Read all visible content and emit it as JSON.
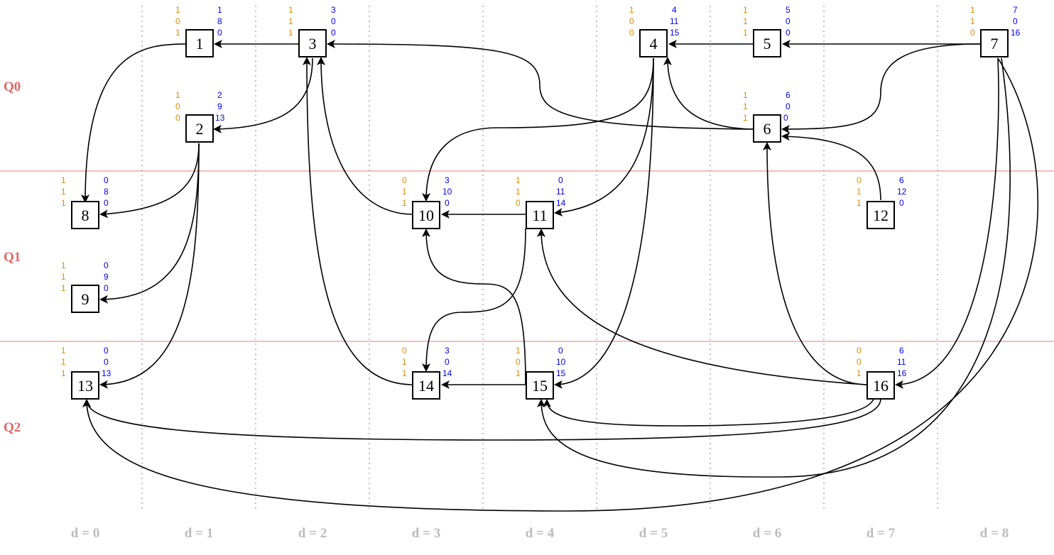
{
  "rows": [
    {
      "id": "Q0",
      "label": "Q0"
    },
    {
      "id": "Q1",
      "label": "Q1"
    },
    {
      "id": "Q2",
      "label": "Q2"
    }
  ],
  "columns": [
    "d = 0",
    "d = 1",
    "d = 2",
    "d = 3",
    "d = 4",
    "d = 5",
    "d = 6",
    "d = 7",
    "d = 8"
  ],
  "nodes": [
    {
      "id": "1",
      "label": "1",
      "left": [
        "1",
        "0",
        "1"
      ],
      "right": [
        "1",
        "8",
        "0"
      ]
    },
    {
      "id": "2",
      "label": "2",
      "left": [
        "1",
        "0",
        "0"
      ],
      "right": [
        "2",
        "9",
        "13"
      ]
    },
    {
      "id": "3",
      "label": "3",
      "left": [
        "1",
        "1",
        "1"
      ],
      "right": [
        "3",
        "0",
        "0"
      ]
    },
    {
      "id": "4",
      "label": "4",
      "left": [
        "1",
        "0",
        "0"
      ],
      "right": [
        "4",
        "11",
        "15"
      ]
    },
    {
      "id": "5",
      "label": "5",
      "left": [
        "1",
        "1",
        "1"
      ],
      "right": [
        "5",
        "0",
        "0"
      ]
    },
    {
      "id": "6",
      "label": "6",
      "left": [
        "1",
        "1",
        "1"
      ],
      "right": [
        "6",
        "0",
        "0"
      ]
    },
    {
      "id": "7",
      "label": "7",
      "left": [
        "1",
        "1",
        "0"
      ],
      "right": [
        "7",
        "0",
        "16"
      ]
    },
    {
      "id": "8",
      "label": "8",
      "left": [
        "1",
        "1",
        "1"
      ],
      "right": [
        "0",
        "8",
        "0"
      ]
    },
    {
      "id": "9",
      "label": "9",
      "left": [
        "1",
        "1",
        "1"
      ],
      "right": [
        "0",
        "9",
        "0"
      ]
    },
    {
      "id": "10",
      "label": "10",
      "left": [
        "0",
        "1",
        "1"
      ],
      "right": [
        "3",
        "10",
        "0"
      ]
    },
    {
      "id": "11",
      "label": "11",
      "left": [
        "1",
        "1",
        "0"
      ],
      "right": [
        "0",
        "11",
        "14"
      ]
    },
    {
      "id": "12",
      "label": "12",
      "left": [
        "0",
        "1",
        "1"
      ],
      "right": [
        "6",
        "12",
        "0"
      ]
    },
    {
      "id": "13",
      "label": "13",
      "left": [
        "1",
        "1",
        "1"
      ],
      "right": [
        "0",
        "0",
        "13"
      ]
    },
    {
      "id": "14",
      "label": "14",
      "left": [
        "0",
        "1",
        "1"
      ],
      "right": [
        "3",
        "0",
        "14"
      ]
    },
    {
      "id": "15",
      "label": "15",
      "left": [
        "1",
        "0",
        "1"
      ],
      "right": [
        "0",
        "10",
        "15"
      ]
    },
    {
      "id": "16",
      "label": "16",
      "left": [
        "0",
        "0",
        "1"
      ],
      "right": [
        "6",
        "11",
        "16"
      ]
    }
  ],
  "edges": [
    {
      "from": "1",
      "to": "8"
    },
    {
      "from": "3",
      "to": "1"
    },
    {
      "from": "3",
      "to": "2"
    },
    {
      "from": "2",
      "to": "8"
    },
    {
      "from": "2",
      "to": "9"
    },
    {
      "from": "2",
      "to": "13"
    },
    {
      "from": "6",
      "to": "3"
    },
    {
      "from": "10",
      "to": "3"
    },
    {
      "from": "14",
      "to": "3"
    },
    {
      "from": "5",
      "to": "4"
    },
    {
      "from": "6",
      "to": "4"
    },
    {
      "from": "4",
      "to": "10"
    },
    {
      "from": "4",
      "to": "11"
    },
    {
      "from": "4",
      "to": "15"
    },
    {
      "from": "7",
      "to": "5"
    },
    {
      "from": "7",
      "to": "6"
    },
    {
      "from": "12",
      "to": "6"
    },
    {
      "from": "16",
      "to": "6"
    },
    {
      "from": "7",
      "to": "16"
    },
    {
      "from": "7",
      "to": "15"
    },
    {
      "from": "7",
      "to": "13"
    },
    {
      "from": "11",
      "to": "10"
    },
    {
      "from": "15",
      "to": "10"
    },
    {
      "from": "11",
      "to": "14"
    },
    {
      "from": "16",
      "to": "11"
    },
    {
      "from": "15",
      "to": "14"
    },
    {
      "from": "16",
      "to": "15"
    },
    {
      "from": "16",
      "to": "13"
    }
  ]
}
